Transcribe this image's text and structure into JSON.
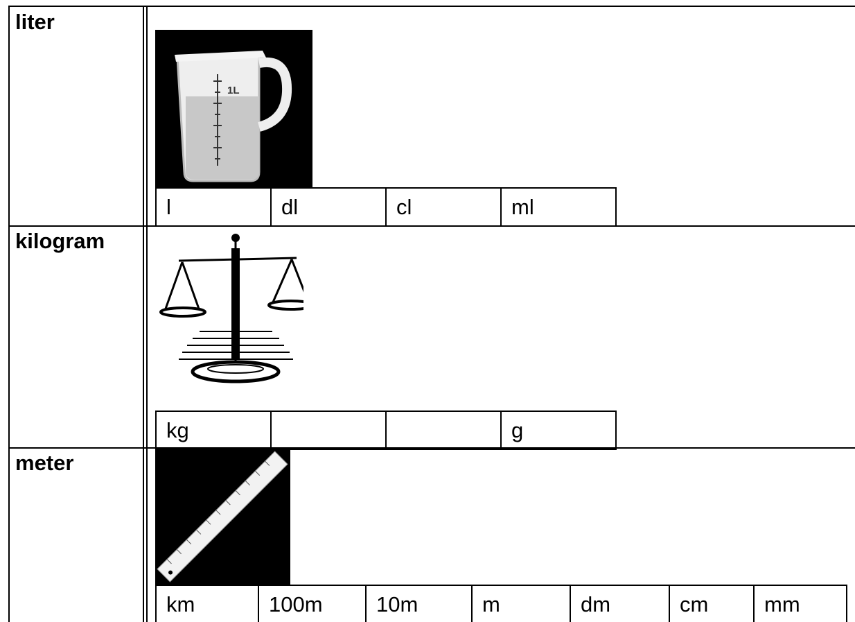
{
  "table": {
    "rows": [
      {
        "label": "liter",
        "units": [
          "l",
          "dl",
          "cl",
          "ml"
        ]
      },
      {
        "label": "kilogram",
        "units": [
          "kg",
          null,
          null,
          "g"
        ]
      },
      {
        "label": "meter",
        "units": [
          "km",
          "100m",
          "10m",
          "m",
          "dm",
          "cm",
          "mm"
        ]
      }
    ]
  }
}
